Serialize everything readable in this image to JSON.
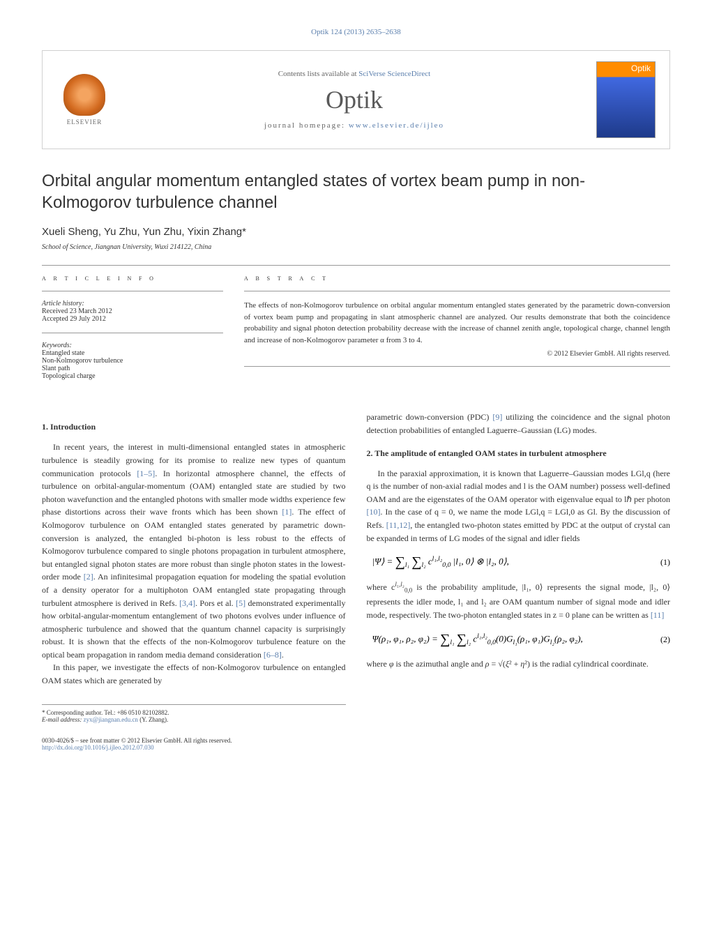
{
  "header": {
    "citation": "Optik 124 (2013) 2635–2638",
    "contents_prefix": "Contents lists available at ",
    "contents_link": "SciVerse ScienceDirect",
    "journal_name": "Optik",
    "homepage_prefix": "journal homepage: ",
    "homepage_link": "www.elsevier.de/ijleo",
    "publisher": "ELSEVIER",
    "cover_title": "Optik"
  },
  "article": {
    "title": "Orbital angular momentum entangled states of vortex beam pump in non-Kolmogorov turbulence channel",
    "authors": "Xueli Sheng, Yu Zhu, Yun Zhu, Yixin Zhang",
    "corresponding_marker": "*",
    "affiliation": "School of Science, Jiangnan University, Wuxi 214122, China"
  },
  "info": {
    "label": "a r t i c l e   i n f o",
    "history_label": "Article history:",
    "received": "Received 23 March 2012",
    "accepted": "Accepted 29 July 2012",
    "keywords_label": "Keywords:",
    "keywords": [
      "Entangled state",
      "Non-Kolmogorov turbulence",
      "Slant path",
      "Topological charge"
    ]
  },
  "abstract": {
    "label": "a b s t r a c t",
    "text": "The effects of non-Kolmogorov turbulence on orbital angular momentum entangled states generated by the parametric down-conversion of vortex beam pump and propagating in slant atmospheric channel are analyzed. Our results demonstrate that both the coincidence probability and signal photon detection probability decrease with the increase of channel zenith angle, topological charge, channel length and increase of non-Kolmogorov parameter α from 3 to 4.",
    "copyright": "© 2012 Elsevier GmbH. All rights reserved."
  },
  "sections": {
    "intro": {
      "heading": "1. Introduction",
      "p1_a": "In recent years, the interest in multi-dimensional entangled states in atmospheric turbulence is steadily growing for its promise to realize new types of quantum communication protocols ",
      "p1_ref1": "[1–5]",
      "p1_b": ". In horizontal atmosphere channel, the effects of turbulence on orbital-angular-momentum (OAM) entangled state are studied by two photon wavefunction and the entangled photons with smaller mode widths experience few phase distortions across their wave fronts which has been shown ",
      "p1_ref2": "[1]",
      "p1_c": ". The effect of Kolmogorov turbulence on OAM entangled states generated by parametric down-conversion is analyzed, the entangled bi-photon is less robust to the effects of Kolmogorov turbulence compared to single photons propagation in turbulent atmosphere, but entangled signal photon states are more robust than single photon states in the lowest-order mode ",
      "p1_ref3": "[2]",
      "p1_d": ". An infinitesimal propagation equation for modeling the spatial evolution of a density operator for a multiphoton OAM entangled state propagating through turbulent atmosphere is derived in Refs. ",
      "p1_ref4": "[3,4]",
      "p1_e": ". Pors et al. ",
      "p1_ref5": "[5]",
      "p1_f": " demonstrated experimentally how orbital-angular-momentum entanglement of two photons evolves under influence of atmospheric turbulence and showed that the quantum channel capacity is surprisingly robust. It is shown that the effects of the non-Kolmogorov turbulence feature on the optical beam propagation in random media demand consideration ",
      "p1_ref6": "[6–8]",
      "p1_g": ".",
      "p2_a": "In this paper, we investigate the effects of non-Kolmogorov turbulence on entangled OAM states which are generated by ",
      "p2_b": "parametric down-conversion (PDC) ",
      "p2_ref": "[9]",
      "p2_c": " utilizing the coincidence and the signal photon detection probabilities of entangled Laguerre–Gaussian (LG) modes."
    },
    "amplitude": {
      "heading": "2. The amplitude of entangled OAM states in turbulent atmosphere",
      "p1_a": "In the paraxial approximation, it is known that Laguerre–Gaussian modes LGl,q (here q is the number of non-axial radial modes and l is the OAM number) possess well-defined OAM and are the eigenstates of the OAM operator with eigenvalue equal to lℏ per photon ",
      "p1_ref1": "[10]",
      "p1_b": ". In the case of q = 0, we name the mode LGl,q = LGl,0 as Gl. By the discussion of Refs. ",
      "p1_ref2": "[11,12]",
      "p1_c": ", the entangled two-photon states emitted by PDC at the output of crystal can be expanded in terms of LG modes of the signal and idler fields",
      "p2_a": "where c",
      "p2_b": " is the probability amplitude, |l₁, 0⟩ represents the signal mode, |l₂, 0⟩ represents the idler mode, l₁ and l₂ are OAM quantum number of signal mode and idler mode, respectively. The two-photon entangled states in z = 0 plane can be written as ",
      "p2_ref": "[11]",
      "p3": "where φ is the azimuthal angle and ρ = √(ξ² + η²) is the radial cylindrical coordinate."
    }
  },
  "equations": {
    "eq1": "|Ψ⟩ = ∑∑ c₀,₀^(l₁,l₂) |l₁, 0⟩ ⊗ |l₂, 0⟩,",
    "eq1_num": "(1)",
    "eq2": "Ψ(ρ₁, φ₁, ρ₂, φ₂) = ∑∑ c₀,₀^(l₁,l₂)(0) G_{l₁}(ρ₁, φ₁) G_{l₂}(ρ₂, φ₂),",
    "eq2_num": "(2)"
  },
  "footer": {
    "corresponding": "* Corresponding author. Tel.: +86 0510 82102882.",
    "email_label": "E-mail address: ",
    "email": "zyx@jiangnan.edu.cn",
    "email_name": " (Y. Zhang).",
    "issn": "0030-4026/$ – see front matter © 2012 Elsevier GmbH. All rights reserved.",
    "doi": "http://dx.doi.org/10.1016/j.ijleo.2012.07.030"
  }
}
